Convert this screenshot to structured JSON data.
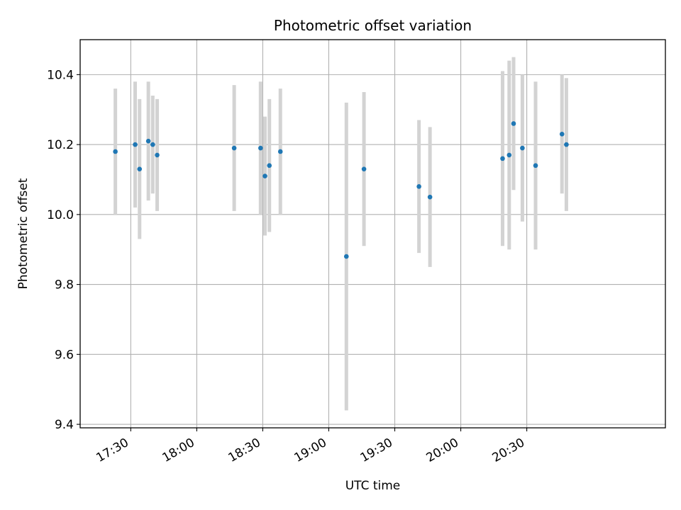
{
  "chart_data": {
    "type": "scatter",
    "title": "Photometric offset variation",
    "xlabel": "UTC time",
    "ylabel": "Photometric offset",
    "x_is_time": true,
    "xlim": [
      "17:07",
      "21:33"
    ],
    "ylim": [
      9.39,
      10.5
    ],
    "x_ticks": [
      "17:30",
      "18:00",
      "18:30",
      "19:00",
      "19:30",
      "20:00",
      "20:30"
    ],
    "y_ticks": [
      9.4,
      9.6,
      9.8,
      10.0,
      10.2,
      10.4
    ],
    "y_tick_labels": [
      "9.4",
      "9.6",
      "9.8",
      "10.0",
      "10.2",
      "10.4"
    ],
    "grid": true,
    "colors": {
      "points": "#1f77b4",
      "errorbars": "#d3d3d3",
      "grid": "#b0b0b0"
    },
    "series": [
      {
        "points": [
          {
            "x": "17:23",
            "y": 10.18,
            "yerr": 0.18
          },
          {
            "x": "17:32",
            "y": 10.2,
            "yerr": 0.18
          },
          {
            "x": "17:34",
            "y": 10.13,
            "yerr": 0.2
          },
          {
            "x": "17:38",
            "y": 10.21,
            "yerr": 0.17
          },
          {
            "x": "17:40",
            "y": 10.2,
            "yerr": 0.14
          },
          {
            "x": "17:42",
            "y": 10.17,
            "yerr": 0.16
          },
          {
            "x": "18:17",
            "y": 10.19,
            "yerr": 0.18
          },
          {
            "x": "18:29",
            "y": 10.19,
            "yerr": 0.19
          },
          {
            "x": "18:31",
            "y": 10.11,
            "yerr": 0.17
          },
          {
            "x": "18:33",
            "y": 10.14,
            "yerr": 0.19
          },
          {
            "x": "18:38",
            "y": 10.18,
            "yerr": 0.18
          },
          {
            "x": "19:08",
            "y": 9.88,
            "yerr": 0.44
          },
          {
            "x": "19:16",
            "y": 10.13,
            "yerr": 0.22
          },
          {
            "x": "19:41",
            "y": 10.08,
            "yerr": 0.19
          },
          {
            "x": "19:46",
            "y": 10.05,
            "yerr": 0.2
          },
          {
            "x": "20:19",
            "y": 10.16,
            "yerr": 0.25
          },
          {
            "x": "20:22",
            "y": 10.17,
            "yerr": 0.27
          },
          {
            "x": "20:24",
            "y": 10.26,
            "yerr": 0.19
          },
          {
            "x": "20:28",
            "y": 10.19,
            "yerr": 0.21
          },
          {
            "x": "20:34",
            "y": 10.14,
            "yerr": 0.24
          },
          {
            "x": "20:46",
            "y": 10.23,
            "yerr": 0.17
          },
          {
            "x": "20:48",
            "y": 10.2,
            "yerr": 0.19
          }
        ]
      }
    ]
  }
}
